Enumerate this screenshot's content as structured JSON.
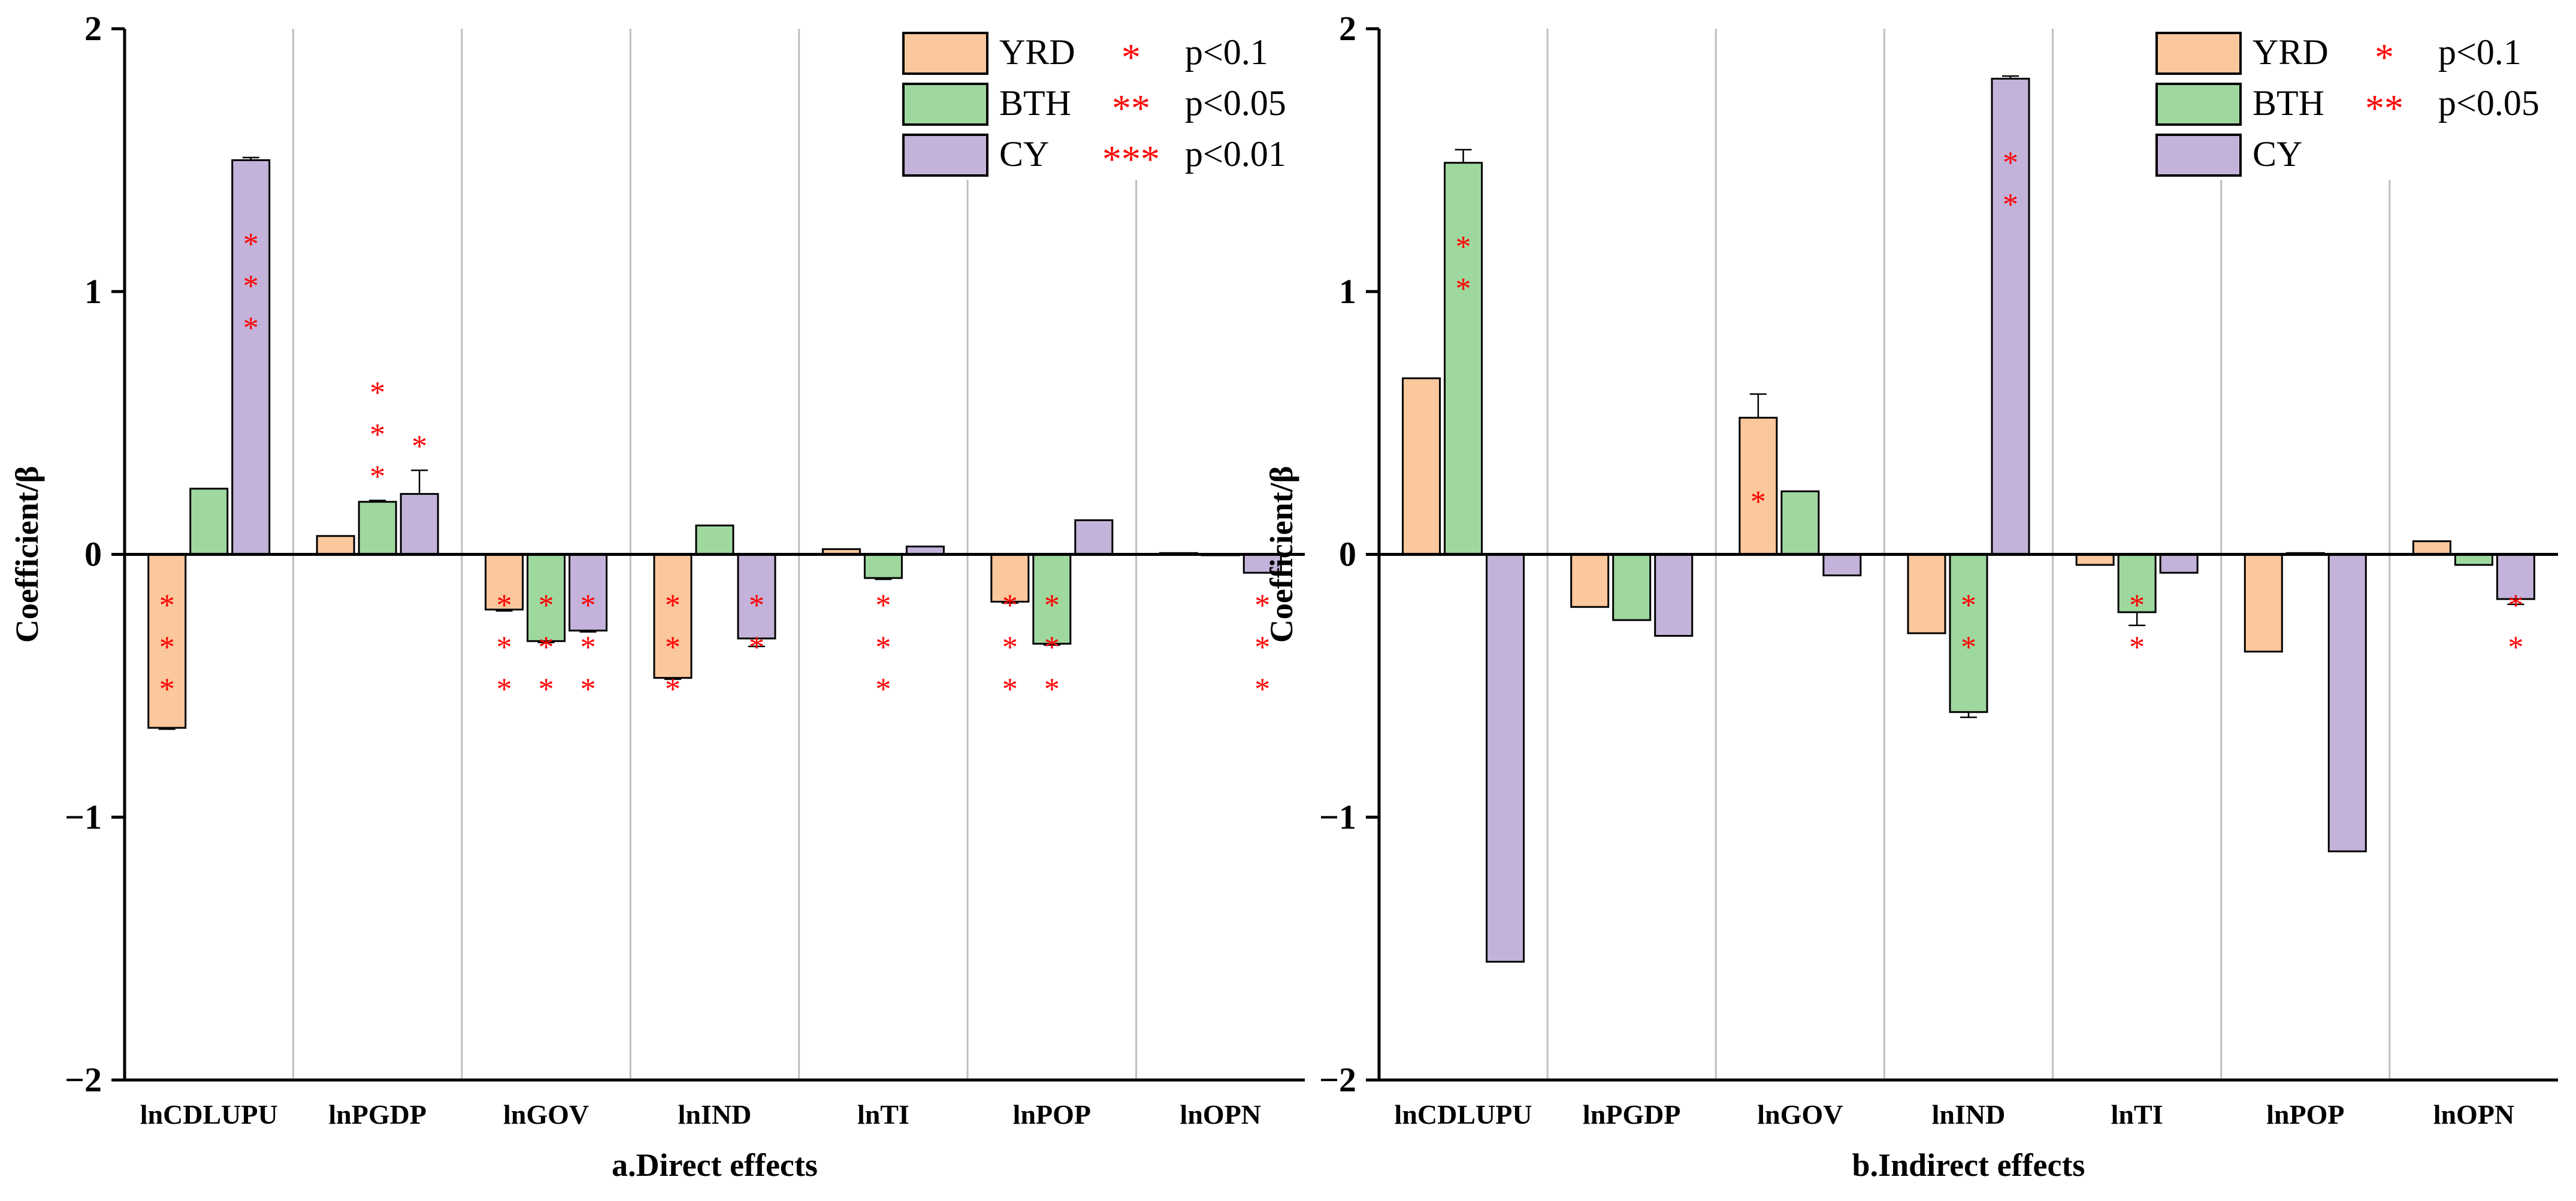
{
  "chart_data": [
    {
      "type": "bar",
      "panel": "a",
      "title": "a.Direct effects",
      "xlabel": "a.Direct effects",
      "ylabel": "Coefficient/β",
      "ylim": [
        -2,
        2
      ],
      "yticks": [
        2,
        1,
        0,
        -1,
        -2
      ],
      "ytick_labels": [
        "2",
        "1",
        "0",
        "−1",
        "−2"
      ],
      "categories": [
        "lnCDLUPU",
        "lnPGDP",
        "lnGOV",
        "lnIND",
        "lnTI",
        "lnPOP",
        "lnOPN"
      ],
      "series": [
        {
          "name": "YRD",
          "color": "#fbc79c",
          "values": [
            -0.66,
            0.07,
            -0.21,
            -0.47,
            0.02,
            -0.18,
            0.005
          ],
          "errors": [
            0.005,
            0,
            0.005,
            0.005,
            0,
            0.005,
            0
          ],
          "significance": [
            "***",
            "",
            "***",
            "***",
            "",
            "***",
            ""
          ]
        },
        {
          "name": "BTH",
          "color": "#9fd89f",
          "values": [
            0.25,
            0.2,
            -0.33,
            0.11,
            -0.09,
            -0.34,
            0
          ],
          "errors": [
            0,
            0.005,
            0.005,
            0,
            0.005,
            0.005,
            0
          ],
          "significance": [
            "",
            "***",
            "***",
            "",
            "***",
            "***",
            ""
          ]
        },
        {
          "name": "CY",
          "color": "#c3b2d9",
          "values": [
            1.5,
            0.23,
            -0.29,
            -0.32,
            0.03,
            0.13,
            -0.07
          ],
          "errors": [
            0.01,
            0.09,
            0.005,
            0.03,
            0,
            0,
            0
          ],
          "significance": [
            "***",
            "*",
            "***",
            "**",
            "",
            "",
            "***"
          ]
        }
      ],
      "legend": {
        "position": "top-right",
        "entries": [
          "YRD",
          "BTH",
          "CY"
        ],
        "significance_keys": [
          {
            "stars": "*",
            "label": "p<0.1"
          },
          {
            "stars": "**",
            "label": "p<0.05"
          },
          {
            "stars": "***",
            "label": "p<0.01"
          }
        ]
      }
    },
    {
      "type": "bar",
      "panel": "b",
      "title": "b.Indirect effects",
      "xlabel": "b.Indirect effects",
      "ylabel": "Coefficient/β",
      "ylim": [
        -2,
        2
      ],
      "yticks": [
        2,
        1,
        0,
        -1,
        -2
      ],
      "ytick_labels": [
        "2",
        "1",
        "0",
        "−1",
        "−2"
      ],
      "categories": [
        "lnCDLUPU",
        "lnPGDP",
        "lnGOV",
        "lnIND",
        "lnTI",
        "lnPOP",
        "lnOPN"
      ],
      "series": [
        {
          "name": "YRD",
          "color": "#fbc79c",
          "values": [
            0.67,
            -0.2,
            0.52,
            -0.3,
            -0.04,
            -0.37,
            0.05
          ],
          "errors": [
            0,
            0,
            0.09,
            0,
            0,
            0,
            0
          ],
          "significance": [
            "",
            "",
            "*",
            "",
            "",
            "",
            ""
          ]
        },
        {
          "name": "BTH",
          "color": "#9fd89f",
          "values": [
            1.49,
            -0.25,
            0.24,
            -0.6,
            -0.22,
            0.005,
            -0.04
          ],
          "errors": [
            0.05,
            0,
            0,
            0.02,
            0.05,
            0,
            0
          ],
          "significance": [
            "**",
            "",
            "",
            "**",
            "**",
            "",
            ""
          ]
        },
        {
          "name": "CY",
          "color": "#c3b2d9",
          "values": [
            -1.55,
            -0.31,
            -0.08,
            1.81,
            -0.07,
            -1.13,
            -0.17
          ],
          "errors": [
            0,
            0,
            0,
            0.01,
            0,
            0,
            0.02
          ],
          "significance": [
            "",
            "",
            "",
            "**",
            "",
            "",
            "**"
          ]
        }
      ],
      "legend": {
        "position": "top-right",
        "entries": [
          "YRD",
          "BTH",
          "CY"
        ],
        "significance_keys": [
          {
            "stars": "*",
            "label": "p<0.1"
          },
          {
            "stars": "**",
            "label": "p<0.05"
          }
        ]
      }
    }
  ],
  "colors": {
    "axis": "#000000",
    "separator": "#bfbfbf",
    "star": "#ff0000",
    "bar_outline": "#000000"
  }
}
